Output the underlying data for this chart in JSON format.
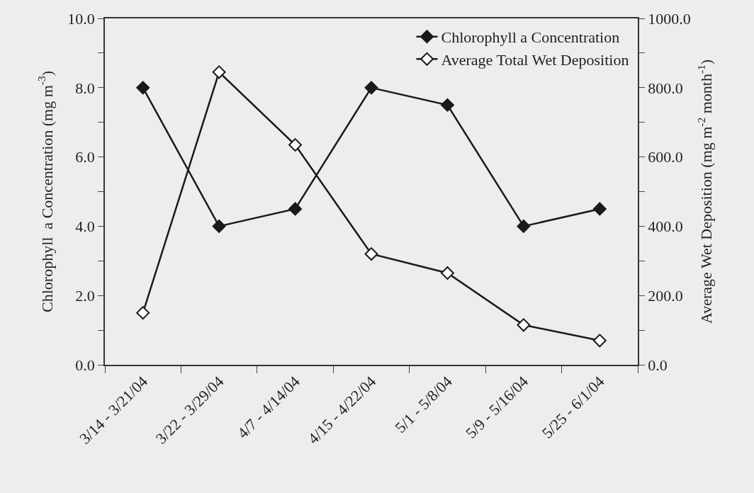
{
  "chart_data": {
    "type": "line",
    "ylabel": "Chlorophyll  a Concentration (mg m$^{-3}$)",
    "y2label": "Average Wet Deposition (mg m$^{-2}$ month$^{-1}$)",
    "categories": [
      "3/14 - 3/21/04",
      "3/22 - 3/29/04",
      "4/7 - 4/14/04",
      "4/15 - 4/22/04",
      "5/1 - 5/8/04",
      "5/9 - 5/16/04",
      "5/25 - 6/1/04"
    ],
    "series": [
      {
        "name": "Chlorophyll a Concentration",
        "color": "#1a1a1a",
        "values": [
          8.0,
          4.0,
          4.5,
          8.0,
          7.5,
          4.0,
          4.5
        ]
      },
      {
        "name": "Average Total Wet Deposition",
        "color": "#1a1a1a",
        "axis": "y2",
        "values": [
          150,
          845,
          635,
          320,
          265,
          115,
          70
        ]
      }
    ],
    "ylim": [
      0,
      10
    ],
    "yticks": [
      {
        "value": 0,
        "label": "0.0"
      },
      {
        "value": 1,
        "label": null
      },
      {
        "value": 2,
        "label": "2.0"
      },
      {
        "value": 3,
        "label": null
      },
      {
        "value": 4,
        "label": "4.0"
      },
      {
        "value": 5,
        "label": null
      },
      {
        "value": 6,
        "label": "6.0"
      },
      {
        "value": 7,
        "label": null
      },
      {
        "value": 8,
        "label": "8.0"
      },
      {
        "value": 9,
        "label": null
      },
      {
        "value": 10,
        "label": "10.0"
      }
    ],
    "y2lim": [
      0,
      1000
    ],
    "y2ticks": [
      {
        "value": 0,
        "label": "0.0"
      },
      {
        "value": 100,
        "label": null
      },
      {
        "value": 200,
        "label": "200.0"
      },
      {
        "value": 300,
        "label": null
      },
      {
        "value": 400,
        "label": "400.0"
      },
      {
        "value": 500,
        "label": null
      },
      {
        "value": 600,
        "label": "600.0"
      },
      {
        "value": 700,
        "label": null
      },
      {
        "value": 800,
        "label": "800.0"
      },
      {
        "value": 900,
        "label": null
      },
      {
        "value": 1000,
        "label": "1000.0"
      }
    ],
    "grid": false,
    "legend": "top right",
    "marker": "diamond",
    "line_style": "solid"
  }
}
